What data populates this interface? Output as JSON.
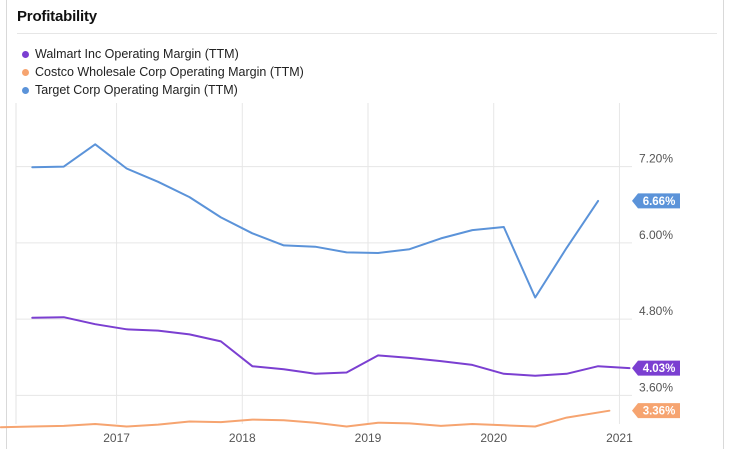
{
  "panel": {
    "title": "Profitability"
  },
  "chart_data": {
    "type": "line",
    "title": "",
    "xlabel": "",
    "ylabel": "",
    "x_range": [
      2016.2,
      2021.1
    ],
    "ylim": [
      3.15,
      8.2
    ],
    "x_ticks": [
      {
        "value": 2017,
        "label": "2017"
      },
      {
        "value": 2018,
        "label": "2018"
      },
      {
        "value": 2019,
        "label": "2019"
      },
      {
        "value": 2020,
        "label": "2020"
      },
      {
        "value": 2021,
        "label": "2021"
      }
    ],
    "y_ticks": [
      {
        "value": 3.6,
        "label": "3.60%"
      },
      {
        "value": 4.8,
        "label": "4.80%"
      },
      {
        "value": 6.0,
        "label": "6.00%"
      },
      {
        "value": 7.2,
        "label": "7.20%"
      }
    ],
    "grid": true,
    "legend_position": "top-left",
    "series": [
      {
        "name": "Walmart Inc Operating Margin (TTM)",
        "color": "#7b3fd1",
        "end_label": "4.03%",
        "points": [
          [
            2016.33,
            4.82
          ],
          [
            2016.58,
            4.83
          ],
          [
            2016.83,
            4.72
          ],
          [
            2017.08,
            4.64
          ],
          [
            2017.33,
            4.62
          ],
          [
            2017.58,
            4.56
          ],
          [
            2017.83,
            4.45
          ],
          [
            2018.08,
            4.06
          ],
          [
            2018.33,
            4.01
          ],
          [
            2018.58,
            3.94
          ],
          [
            2018.83,
            3.96
          ],
          [
            2019.08,
            4.23
          ],
          [
            2019.33,
            4.19
          ],
          [
            2019.58,
            4.14
          ],
          [
            2019.83,
            4.08
          ],
          [
            2020.08,
            3.94
          ],
          [
            2020.33,
            3.91
          ],
          [
            2020.58,
            3.94
          ],
          [
            2020.83,
            4.06
          ],
          [
            2021.08,
            4.03
          ]
        ]
      },
      {
        "name": "Costco Wholesale Corp Operating Margin (TTM)",
        "color": "#f6a470",
        "end_label": "3.36%",
        "points": [
          [
            2016.08,
            3.1
          ],
          [
            2016.33,
            3.11
          ],
          [
            2016.58,
            3.12
          ],
          [
            2016.83,
            3.15
          ],
          [
            2017.08,
            3.11
          ],
          [
            2017.33,
            3.14
          ],
          [
            2017.58,
            3.19
          ],
          [
            2017.83,
            3.18
          ],
          [
            2018.08,
            3.22
          ],
          [
            2018.33,
            3.21
          ],
          [
            2018.58,
            3.17
          ],
          [
            2018.83,
            3.11
          ],
          [
            2019.08,
            3.17
          ],
          [
            2019.33,
            3.16
          ],
          [
            2019.58,
            3.12
          ],
          [
            2019.83,
            3.15
          ],
          [
            2020.08,
            3.13
          ],
          [
            2020.33,
            3.11
          ],
          [
            2020.58,
            3.25
          ],
          [
            2020.92,
            3.36
          ]
        ]
      },
      {
        "name": "Target Corp Operating Margin (TTM)",
        "color": "#5b93d9",
        "end_label": "6.66%",
        "points": [
          [
            2016.33,
            7.19
          ],
          [
            2016.58,
            7.2
          ],
          [
            2016.83,
            7.55
          ],
          [
            2017.08,
            7.17
          ],
          [
            2017.33,
            6.96
          ],
          [
            2017.58,
            6.72
          ],
          [
            2017.83,
            6.4
          ],
          [
            2018.08,
            6.15
          ],
          [
            2018.33,
            5.96
          ],
          [
            2018.58,
            5.94
          ],
          [
            2018.83,
            5.85
          ],
          [
            2019.08,
            5.84
          ],
          [
            2019.33,
            5.9
          ],
          [
            2019.58,
            6.07
          ],
          [
            2019.83,
            6.2
          ],
          [
            2020.08,
            6.25
          ],
          [
            2020.33,
            5.14
          ],
          [
            2020.58,
            5.92
          ],
          [
            2020.83,
            6.66
          ]
        ]
      }
    ]
  }
}
